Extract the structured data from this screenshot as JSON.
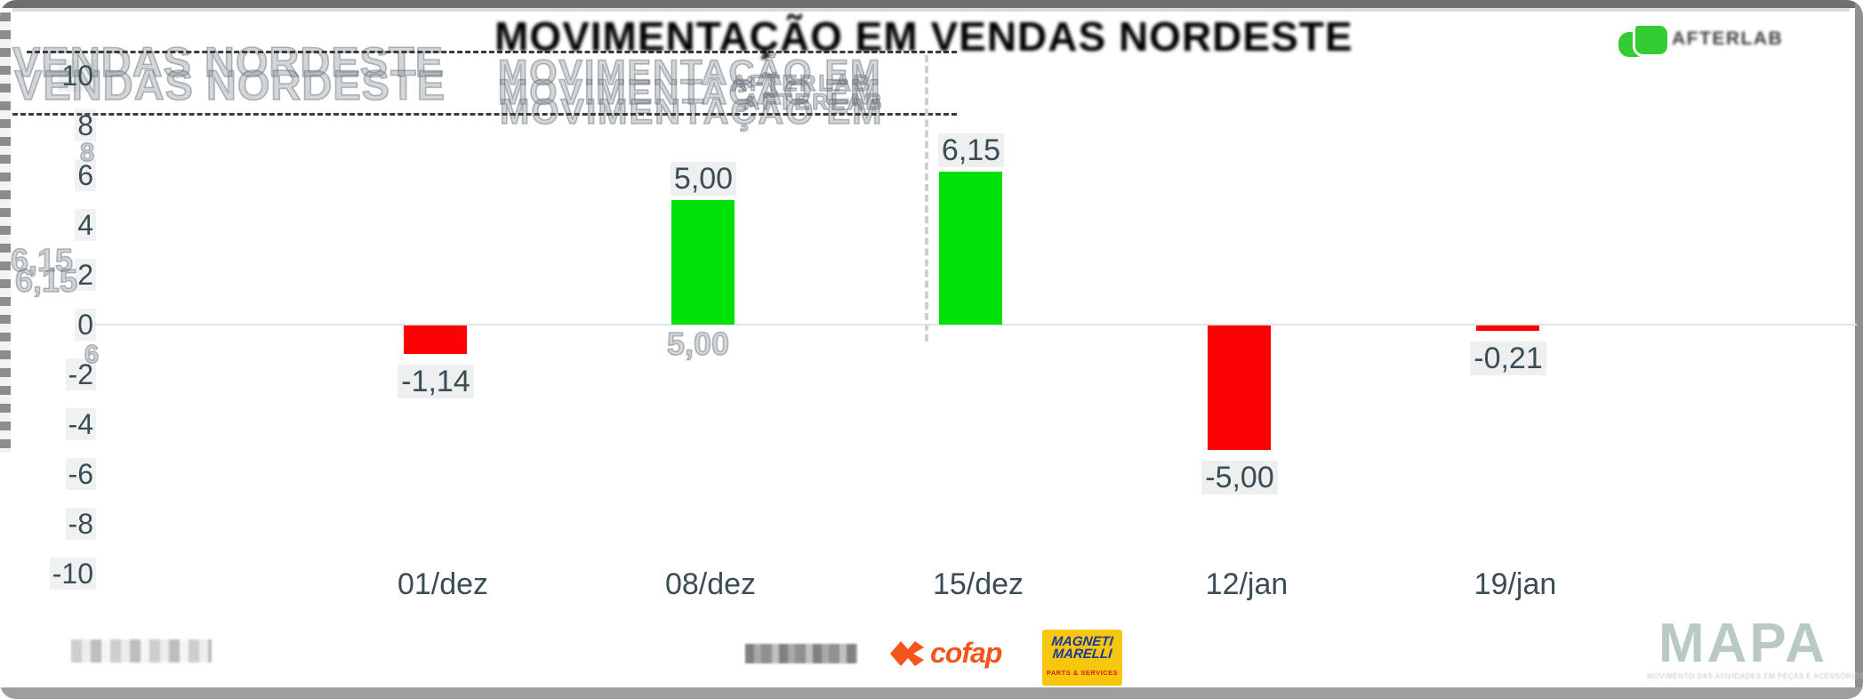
{
  "header": {
    "title": "MOVIMENTAÇÃO EM VENDAS NORDESTE",
    "brand": "AFTERLAB",
    "brand_color": "#33cc33"
  },
  "ghost": {
    "slide_title": "VENDAS NORDESTE",
    "title_fragment": "MOVIMENTAÇÃO EM",
    "brand": "AFTERLAB",
    "value_615": "6,15",
    "value_500": "5,00",
    "digit_8": "8",
    "digit_6": "6"
  },
  "chart_data": {
    "type": "bar",
    "title": "MOVIMENTAÇÃO EM VENDAS NORDESTE",
    "categories": [
      "01/dez",
      "08/dez",
      "15/dez",
      "12/jan",
      "19/jan"
    ],
    "values": [
      -1.14,
      5.0,
      6.15,
      -5.0,
      -0.21
    ],
    "value_labels": [
      "-1,14",
      "5,00",
      "6,15",
      "-5,00",
      "-0,21"
    ],
    "y_ticks": [
      10,
      8,
      6,
      4,
      2,
      0,
      -2,
      -4,
      -6,
      -8,
      -10
    ],
    "ylim": [
      -10,
      10
    ],
    "xlabel": "",
    "ylabel": "",
    "grid": "zero-line-only",
    "legend": "none",
    "positive_color": "#00e10a",
    "negative_color": "#fc0204",
    "label_color": "#3a4c55"
  },
  "footer": {
    "source_note_redacted": true,
    "partner_wordmark_redacted": true,
    "cofap": "cofap",
    "marelli_line1": "MAGNETI",
    "marelli_line2": "MARELLI",
    "marelli_sub": "PARTS & SERVICES",
    "mapa": "MAPA",
    "mapa_tagline": "MOVIMENTO DAS ATIVIDADES EM PEÇAS E ACESSÓRIOS"
  }
}
